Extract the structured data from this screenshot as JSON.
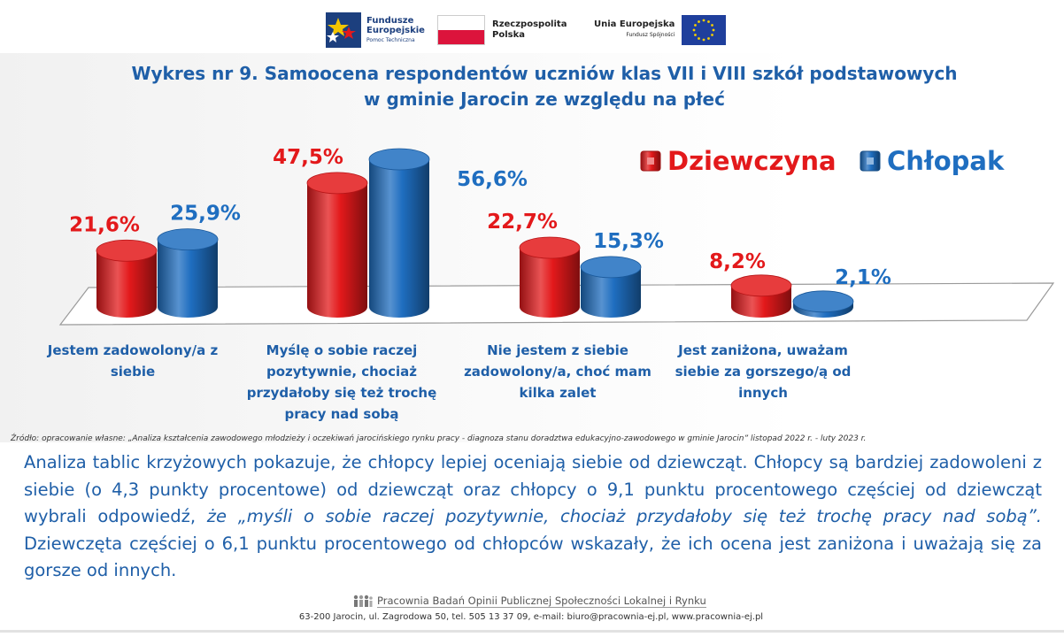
{
  "logos": {
    "fe_line1": "Fundusze",
    "fe_line2": "Europejskie",
    "fe_line3": "Pomoc Techniczna",
    "rp_line1": "Rzeczpospolita",
    "rp_line2": "Polska",
    "ue_line1": "Unia Europejska",
    "ue_line2": "Fundusz Spójności"
  },
  "title_line1": "Wykres nr 9. Samoocena respondentów uczniów klas VII i VIII szkół podstawowych",
  "title_line2": "w gminie Jarocin ze względu na płeć",
  "chart_data": {
    "type": "bar",
    "style": "3d-cylinder",
    "categories": [
      "Jestem zadowolony/a z siebie",
      "Myślę o sobie raczej pozytywnie, chociaż przydałoby się też trochę pracy nad sobą",
      "Nie jestem z siebie zadowolony/a, choć mam kilka zalet",
      "Jest zaniżona, uważam siebie za gorszego/ą od innych"
    ],
    "series": [
      {
        "name": "Dziewczyna",
        "color": "#e3191b",
        "values": [
          21.6,
          47.5,
          22.7,
          8.2
        ],
        "labels": [
          "21,6%",
          "47,5%",
          "22,7%",
          "8,2%"
        ]
      },
      {
        "name": "Chłopak",
        "color": "#1f6ec0",
        "values": [
          25.9,
          56.6,
          15.3,
          2.1
        ],
        "labels": [
          "25,9%",
          "56,6%",
          "15,3%",
          "2,1%"
        ]
      }
    ],
    "ylim": [
      0,
      60
    ],
    "legend_position": "top-right",
    "grid": false
  },
  "source": "Źródło: opracowanie własne: „Analiza kształcenia zawodowego młodzieży i oczekiwań jarocińskiego rynku pracy - diagnoza stanu doradztwa edukacyjno-zawodowego w gminie Jarocin” listopad 2022 r. - luty 2023 r.",
  "body": {
    "part1": "Analiza tablic krzyżowych pokazuje, że chłopcy lepiej oceniają siebie od dziewcząt. Chłopcy są bardziej zadowoleni z siebie (o 4,3 punkty procentowe) od dziewcząt oraz chłopcy o 9,1 punktu procentowego częściej od dziewcząt wybrali odpowiedź, ",
    "italic": "że „myśli o sobie raczej pozytywnie, chociaż przydałoby się też trochę pracy nad sobą”.",
    "part2": " Dziewczęta częściej o 6,1 punktu procentowego od chłopców wskazały, że ich ocena jest zaniżona i uważają się za gorsze od innych."
  },
  "footer": {
    "name": "Pracownia Badań Opinii Publicznej Społeczności Lokalnej i Rynku",
    "address": "63-200 Jarocin, ul. Zagrodowa 50, tel. 505 13 37 09, e-mail: biuro@pracownia-ej.pl, www.pracownia-ej.pl"
  }
}
